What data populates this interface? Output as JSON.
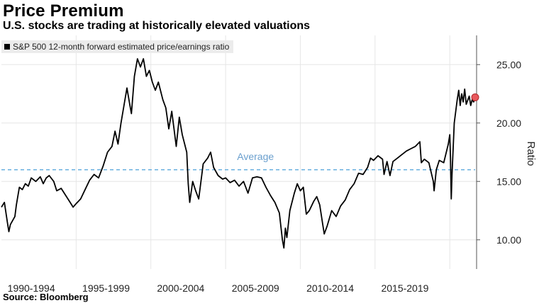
{
  "header": {
    "title": "Price Premium",
    "subtitle": "U.S. stocks are trading at historically elevated valuations"
  },
  "footer": {
    "source": "Source: Bloomberg"
  },
  "colors": {
    "line": "#000000",
    "average": "#6ab0e0",
    "average_label": "#6a9fce",
    "marker_fill": "#e8585c",
    "grid": "#e6e6e6"
  },
  "chart_data": {
    "type": "line",
    "title": "Price Premium",
    "subtitle": "U.S. stocks are trading at historically elevated valuations",
    "legend": [
      "S&P 500 12-month forward estimated price/earnings ratio"
    ],
    "legend_position": "top-left",
    "ylabel": "Ratio",
    "xlabel": "",
    "ylim": [
      7.5,
      27.5
    ],
    "xlim": [
      1990.0,
      2021.7
    ],
    "y_ticks": [
      10.0,
      15.0,
      20.0,
      25.0
    ],
    "y_tick_labels": [
      "10.00",
      "15.00",
      "20.00",
      "25.00"
    ],
    "x_tick_labels": [
      {
        "label": "1990-1994",
        "center": 1992.0
      },
      {
        "label": "1995-1999",
        "center": 1997.0
      },
      {
        "label": "2000-2004",
        "center": 2002.0
      },
      {
        "label": "2005-2009",
        "center": 2007.0
      },
      {
        "label": "2010-2014",
        "center": 2012.0
      },
      {
        "label": "2015-2019",
        "center": 2017.0
      }
    ],
    "grid": true,
    "average": {
      "label": "Average",
      "value": 16.0
    },
    "series": [
      {
        "name": "S&P 500 12-month forward estimated price/earnings ratio",
        "points": [
          [
            1990.0,
            12.8
          ],
          [
            1990.2,
            13.2
          ],
          [
            1990.4,
            11.5
          ],
          [
            1990.5,
            10.7
          ],
          [
            1990.6,
            11.3
          ],
          [
            1990.9,
            12.0
          ],
          [
            1991.0,
            13.0
          ],
          [
            1991.2,
            14.5
          ],
          [
            1991.4,
            14.3
          ],
          [
            1991.6,
            14.8
          ],
          [
            1991.8,
            14.6
          ],
          [
            1992.0,
            15.3
          ],
          [
            1992.3,
            15.0
          ],
          [
            1992.6,
            15.4
          ],
          [
            1992.8,
            14.8
          ],
          [
            1993.0,
            15.3
          ],
          [
            1993.2,
            15.5
          ],
          [
            1993.5,
            15.0
          ],
          [
            1993.7,
            14.2
          ],
          [
            1994.0,
            14.4
          ],
          [
            1994.3,
            13.8
          ],
          [
            1994.6,
            13.2
          ],
          [
            1994.8,
            12.8
          ],
          [
            1995.0,
            13.1
          ],
          [
            1995.3,
            13.5
          ],
          [
            1995.6,
            14.3
          ],
          [
            1995.9,
            15.1
          ],
          [
            1996.2,
            15.6
          ],
          [
            1996.5,
            15.3
          ],
          [
            1996.8,
            16.3
          ],
          [
            1997.1,
            17.5
          ],
          [
            1997.4,
            18.0
          ],
          [
            1997.6,
            19.3
          ],
          [
            1997.8,
            18.2
          ],
          [
            1998.0,
            20.0
          ],
          [
            1998.2,
            21.5
          ],
          [
            1998.4,
            23.0
          ],
          [
            1998.6,
            21.5
          ],
          [
            1998.7,
            20.8
          ],
          [
            1998.9,
            24.0
          ],
          [
            1999.1,
            25.5
          ],
          [
            1999.3,
            24.8
          ],
          [
            1999.5,
            25.5
          ],
          [
            1999.7,
            24.0
          ],
          [
            1999.9,
            24.5
          ],
          [
            2000.1,
            23.5
          ],
          [
            2000.3,
            22.8
          ],
          [
            2000.5,
            23.5
          ],
          [
            2000.8,
            22.0
          ],
          [
            2001.0,
            21.3
          ],
          [
            2001.2,
            19.5
          ],
          [
            2001.4,
            21.0
          ],
          [
            2001.7,
            18.0
          ],
          [
            2001.9,
            20.5
          ],
          [
            2002.1,
            19.0
          ],
          [
            2002.4,
            17.5
          ],
          [
            2002.5,
            14.8
          ],
          [
            2002.6,
            13.2
          ],
          [
            2002.8,
            15.0
          ],
          [
            2003.0,
            14.2
          ],
          [
            2003.2,
            13.5
          ],
          [
            2003.5,
            16.5
          ],
          [
            2003.8,
            17.0
          ],
          [
            2004.0,
            17.5
          ],
          [
            2004.2,
            16.2
          ],
          [
            2004.5,
            15.5
          ],
          [
            2004.8,
            15.2
          ],
          [
            2005.0,
            15.3
          ],
          [
            2005.3,
            14.9
          ],
          [
            2005.6,
            15.1
          ],
          [
            2005.9,
            14.6
          ],
          [
            2006.2,
            15.0
          ],
          [
            2006.5,
            14.0
          ],
          [
            2006.8,
            15.3
          ],
          [
            2007.1,
            15.4
          ],
          [
            2007.4,
            15.3
          ],
          [
            2007.7,
            14.5
          ],
          [
            2008.0,
            13.8
          ],
          [
            2008.3,
            13.2
          ],
          [
            2008.6,
            12.3
          ],
          [
            2008.8,
            10.0
          ],
          [
            2008.9,
            9.3
          ],
          [
            2009.0,
            11.0
          ],
          [
            2009.1,
            10.2
          ],
          [
            2009.3,
            12.5
          ],
          [
            2009.6,
            14.0
          ],
          [
            2009.8,
            14.8
          ],
          [
            2010.0,
            14.2
          ],
          [
            2010.2,
            14.5
          ],
          [
            2010.4,
            12.2
          ],
          [
            2010.6,
            12.5
          ],
          [
            2010.9,
            13.3
          ],
          [
            2011.1,
            13.7
          ],
          [
            2011.3,
            13.0
          ],
          [
            2011.5,
            11.3
          ],
          [
            2011.6,
            10.5
          ],
          [
            2011.8,
            11.2
          ],
          [
            2012.1,
            12.5
          ],
          [
            2012.4,
            12.0
          ],
          [
            2012.7,
            12.9
          ],
          [
            2013.0,
            13.4
          ],
          [
            2013.3,
            14.3
          ],
          [
            2013.6,
            14.8
          ],
          [
            2013.9,
            15.7
          ],
          [
            2014.2,
            15.6
          ],
          [
            2014.5,
            16.2
          ],
          [
            2014.7,
            17.0
          ],
          [
            2014.9,
            16.8
          ],
          [
            2015.2,
            17.2
          ],
          [
            2015.5,
            16.9
          ],
          [
            2015.6,
            15.6
          ],
          [
            2015.8,
            16.7
          ],
          [
            2016.0,
            15.5
          ],
          [
            2016.2,
            16.7
          ],
          [
            2016.5,
            17.0
          ],
          [
            2016.8,
            17.3
          ],
          [
            2017.1,
            17.6
          ],
          [
            2017.4,
            17.8
          ],
          [
            2017.7,
            18.0
          ],
          [
            2018.0,
            18.4
          ],
          [
            2018.1,
            16.6
          ],
          [
            2018.3,
            16.9
          ],
          [
            2018.6,
            16.6
          ],
          [
            2018.9,
            15.0
          ],
          [
            2018.95,
            14.2
          ],
          [
            2019.1,
            16.0
          ],
          [
            2019.3,
            16.8
          ],
          [
            2019.6,
            16.6
          ],
          [
            2019.9,
            18.2
          ],
          [
            2020.0,
            19.0
          ],
          [
            2020.05,
            17.0
          ],
          [
            2020.1,
            13.5
          ],
          [
            2020.15,
            15.5
          ],
          [
            2020.3,
            20.0
          ],
          [
            2020.5,
            22.0
          ],
          [
            2020.6,
            22.8
          ],
          [
            2020.7,
            21.5
          ],
          [
            2020.8,
            22.5
          ],
          [
            2020.9,
            21.8
          ],
          [
            2021.0,
            22.9
          ],
          [
            2021.1,
            21.6
          ],
          [
            2021.3,
            22.3
          ],
          [
            2021.4,
            21.5
          ],
          [
            2021.5,
            22.0
          ],
          [
            2021.6,
            21.8
          ],
          [
            2021.7,
            22.2
          ]
        ],
        "last_point": {
          "x": 2021.7,
          "y": 22.2
        }
      }
    ]
  }
}
